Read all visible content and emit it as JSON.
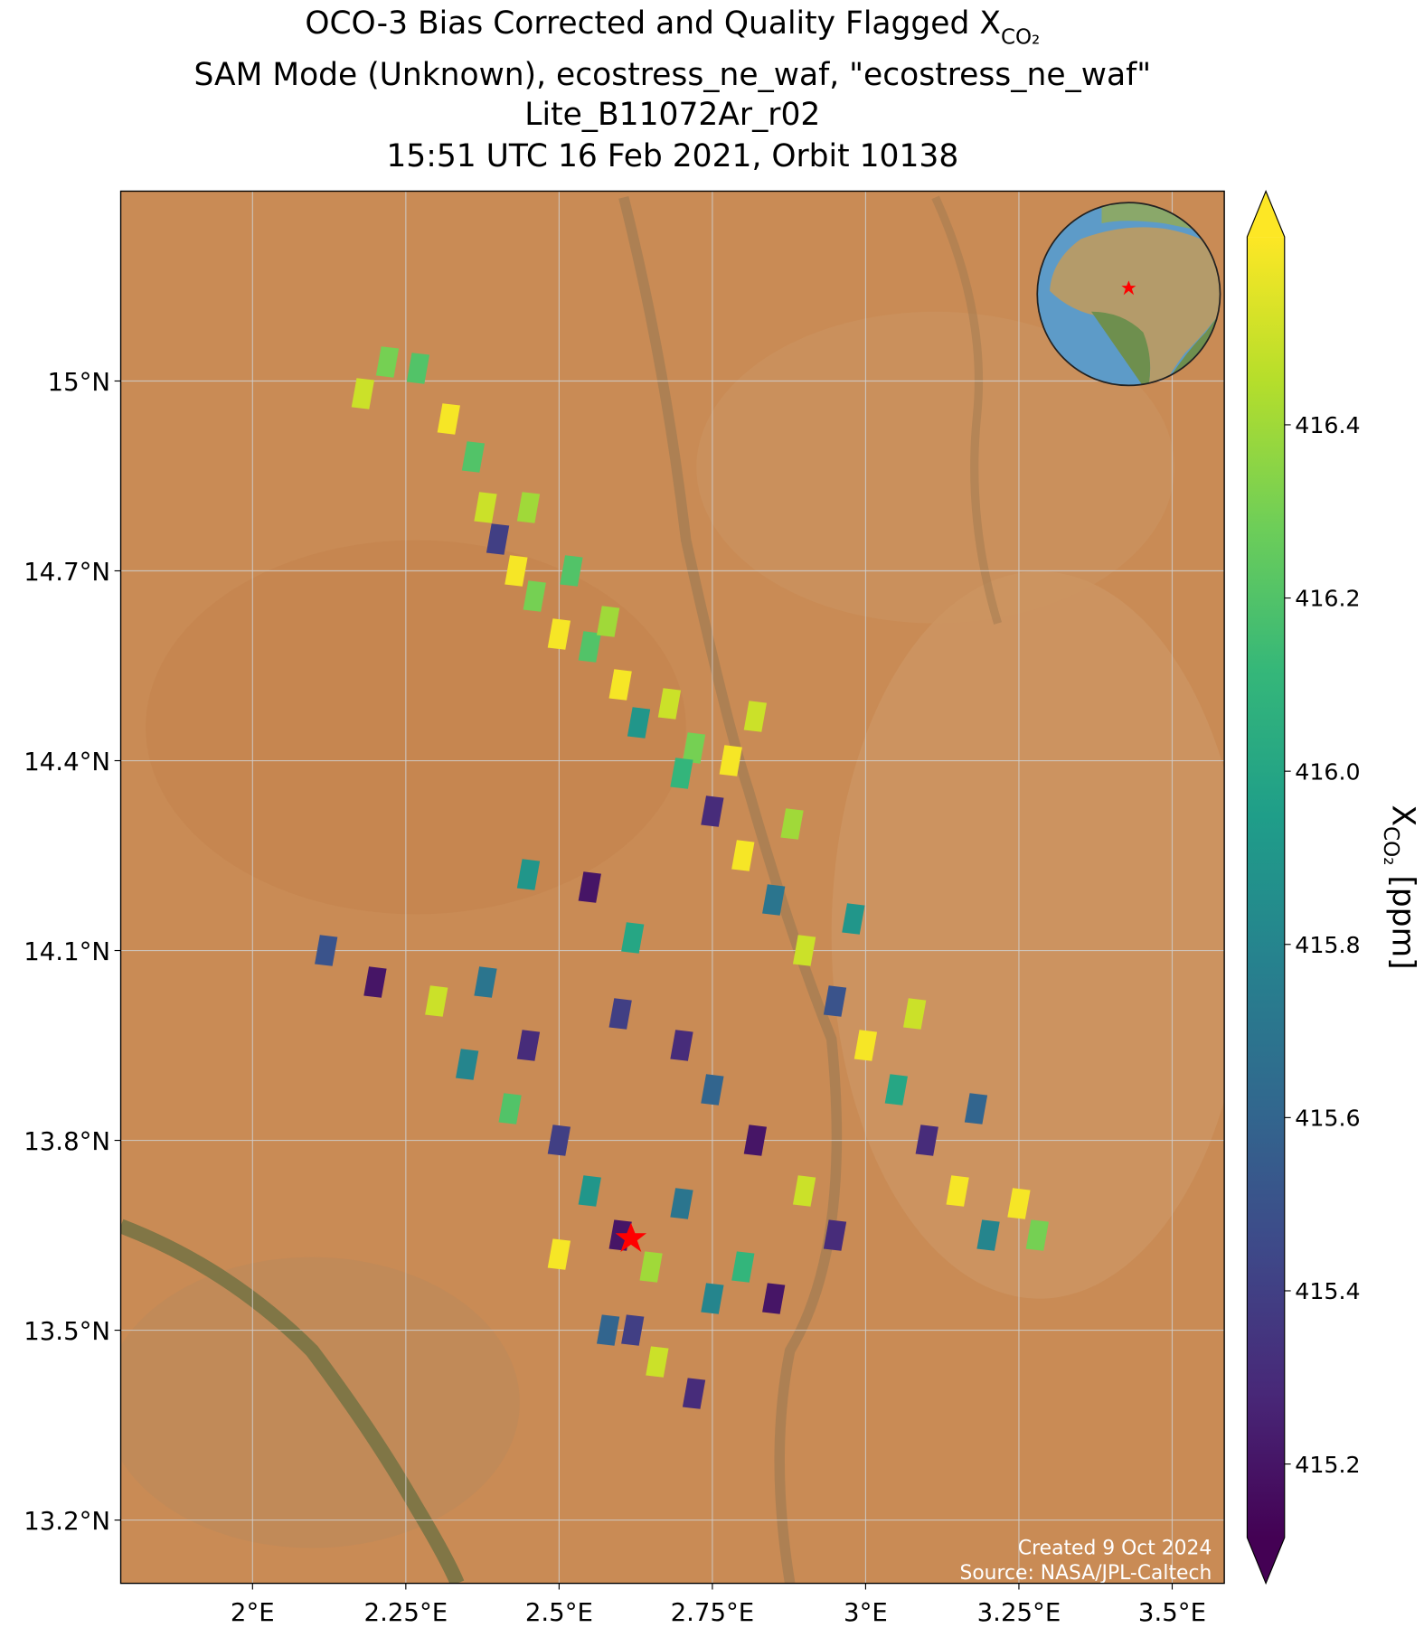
{
  "chart_data": {
    "type": "map-scatter",
    "title": [
      "OCO-3 Bias Corrected and Quality Flagged X",
      "SAM Mode (Unknown), ecostress_ne_waf, \"ecostress_ne_waf\"",
      "Lite_B11072Ar_r02",
      "15:51 UTC 16 Feb 2021, Orbit 10138"
    ],
    "title_subscript": "CO₂",
    "xlim": [
      1.785,
      3.585
    ],
    "ylim": [
      13.1,
      15.3
    ],
    "xticks": [
      {
        "value": 2,
        "label": "2°E"
      },
      {
        "value": 2.25,
        "label": "2.25°E"
      },
      {
        "value": 2.5,
        "label": "2.5°E"
      },
      {
        "value": 2.75,
        "label": "2.75°E"
      },
      {
        "value": 3,
        "label": "3°E"
      },
      {
        "value": 3.25,
        "label": "3.25°E"
      },
      {
        "value": 3.5,
        "label": "3.5°E"
      }
    ],
    "yticks": [
      {
        "value": 13.2,
        "label": "13.2°N"
      },
      {
        "value": 13.5,
        "label": "13.5°N"
      },
      {
        "value": 13.8,
        "label": "13.8°N"
      },
      {
        "value": 14.1,
        "label": "14.1°N"
      },
      {
        "value": 14.4,
        "label": "14.4°N"
      },
      {
        "value": 14.7,
        "label": "14.7°N"
      },
      {
        "value": 15,
        "label": "15°N"
      }
    ],
    "grid": true,
    "colormap": "viridis",
    "clim": [
      415.115,
      416.617
    ],
    "cticks": [
      415.2,
      415.4,
      415.6,
      415.8,
      {
        "value": 416,
        "label": "416.0"
      },
      416.2,
      416.4
    ],
    "colorbar_label": {
      "main": "X",
      "sub": "CO₂",
      "unit": " [ppm]"
    },
    "credits": [
      "Created 9 Oct 2024",
      "Source: NASA/JPL-Caltech"
    ],
    "x": [
      2.18,
      2.22,
      2.27,
      2.32,
      2.36,
      2.38,
      2.4,
      2.43,
      2.46,
      2.5,
      2.45,
      2.52,
      2.55,
      2.6,
      2.63,
      2.68,
      2.58,
      2.72,
      2.7,
      2.75,
      2.8,
      2.85,
      2.9,
      2.95,
      3.0,
      3.05,
      3.1,
      3.15,
      3.2,
      2.78,
      2.88,
      2.98,
      3.08,
      3.18,
      3.25,
      2.82,
      3.28,
      2.45,
      2.55,
      2.62,
      2.6,
      2.7,
      2.75,
      2.82,
      2.9,
      2.95,
      2.12,
      2.2,
      2.3,
      2.35,
      2.42,
      2.5,
      2.55,
      2.6,
      2.65,
      2.58,
      2.66,
      2.72,
      2.75,
      2.8,
      2.45,
      2.38,
      2.5,
      2.62,
      2.7,
      2.85
    ],
    "y": [
      14.98,
      15.03,
      15.02,
      14.94,
      14.88,
      14.8,
      14.75,
      14.7,
      14.66,
      14.6,
      14.8,
      14.7,
      14.58,
      14.52,
      14.46,
      14.49,
      14.62,
      14.42,
      14.38,
      14.32,
      14.25,
      14.18,
      14.1,
      14.02,
      13.95,
      13.88,
      13.8,
      13.72,
      13.65,
      14.4,
      14.3,
      14.15,
      14.0,
      13.85,
      13.7,
      14.47,
      13.65,
      14.22,
      14.2,
      14.12,
      14.0,
      13.95,
      13.88,
      13.8,
      13.72,
      13.65,
      14.1,
      14.05,
      14.02,
      13.92,
      13.85,
      13.8,
      13.72,
      13.65,
      13.6,
      13.5,
      13.45,
      13.4,
      13.55,
      13.6,
      13.95,
      14.05,
      13.62,
      13.5,
      13.7,
      13.55
    ],
    "values": [
      416.5,
      416.3,
      416.2,
      416.6,
      416.2,
      416.5,
      415.4,
      416.6,
      416.3,
      416.6,
      416.4,
      416.2,
      416.2,
      416.6,
      415.9,
      416.5,
      416.4,
      416.3,
      416.1,
      415.3,
      416.6,
      415.7,
      416.5,
      415.5,
      416.6,
      416.0,
      415.3,
      416.6,
      415.8,
      416.6,
      416.4,
      415.9,
      416.5,
      415.6,
      416.6,
      416.5,
      416.3,
      415.9,
      415.2,
      416.0,
      415.4,
      415.3,
      415.6,
      415.2,
      416.5,
      415.3,
      415.5,
      415.2,
      416.5,
      415.8,
      416.2,
      415.4,
      415.9,
      415.2,
      416.4,
      415.6,
      416.5,
      415.3,
      415.8,
      416.1,
      415.3,
      415.7,
      416.6,
      415.4,
      415.7,
      415.2
    ]
  }
}
